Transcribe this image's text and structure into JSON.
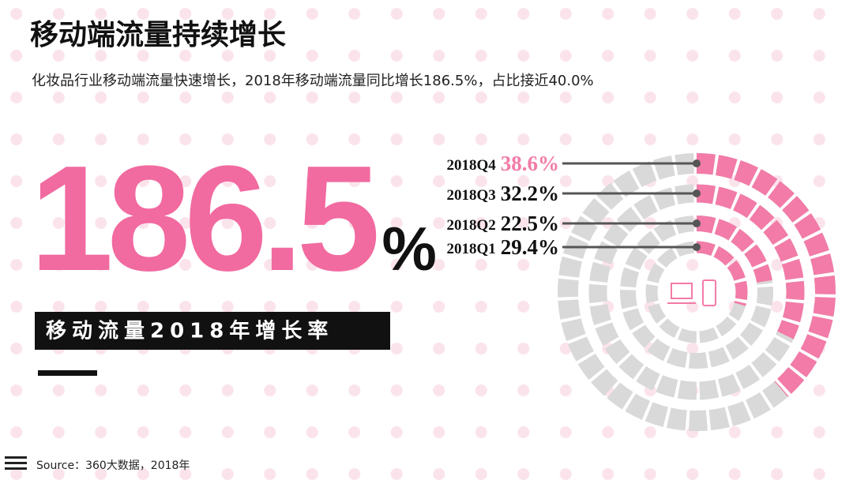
{
  "title": "移动端流量持续增长",
  "subtitle": "化妆品行业移动端流量快速增长，2018年移动端流量同比增长186.5%，占比接近40.0%",
  "headline": {
    "figure": "186.5%",
    "caption": "移动流量2018年增长率"
  },
  "source": "Source：360大数据，2018年",
  "chart_data": {
    "type": "radial",
    "categories": [
      "2018Q4",
      "2018Q3",
      "2018Q2",
      "2018Q1"
    ],
    "values": [
      38.6,
      32.2,
      22.5,
      29.4
    ],
    "value_labels": [
      "38.6%",
      "32.2%",
      "22.5%",
      "29.4%"
    ],
    "ylim": [
      0,
      100
    ],
    "color": "#f27ba8",
    "track_color": "#d9d9d9"
  }
}
